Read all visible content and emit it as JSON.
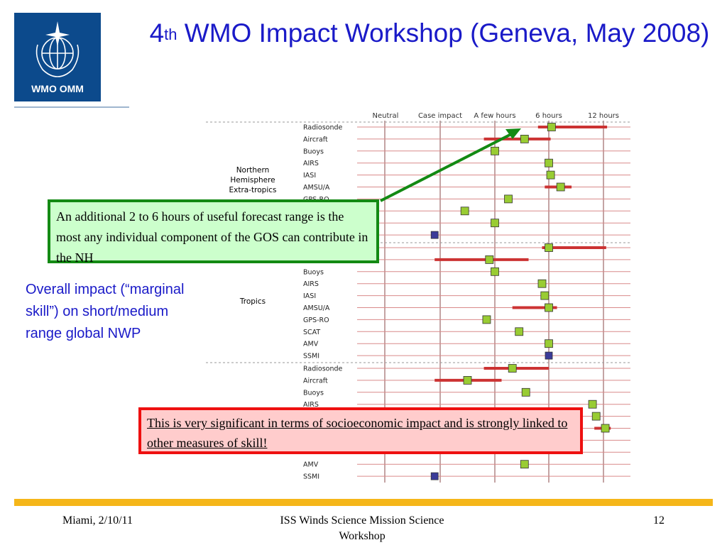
{
  "logo": {
    "text": "WMO OMM",
    "icon": "wmo-emblem-icon"
  },
  "title": {
    "sup": "th",
    "prefix": "4",
    "rest": " WMO Impact Workshop (Geneva, May 2008)"
  },
  "side_text": "Overall impact (“marginal skill”) on short/medium range global NWP",
  "callout_green": "An additional 2 to 6 hours of useful forecast range is the most any individual component of the GOS can contribute in the NH",
  "callout_red": "This is very significant in terms of socioeconomic impact and is strongly linked to other measures of skill!",
  "footer": {
    "left": "Miami, 2/10/11",
    "center": "ISS Winds Science Mission Science Workshop",
    "right": "12"
  },
  "colors": {
    "title": "#1a1ac8",
    "range_bar": "#cc3333",
    "marker_green": "#99cc33",
    "marker_blue": "#3b3b99",
    "callout_green_border": "#138a13",
    "callout_red_border": "#ee1010",
    "footer_rule": "#f5b619"
  },
  "chart_data": {
    "type": "scatter",
    "x_categories": [
      "Neutral",
      "Case impact",
      "A few hours",
      "6 hours",
      "12 hours"
    ],
    "groups": [
      {
        "label": "Northern Hemisphere Extra-tropics",
        "rows": [
          {
            "name": "Radiosonde",
            "value": 6.3,
            "range": [
              5.2,
              12.4
            ],
            "color": "green"
          },
          {
            "name": "Aircraft",
            "value": 4.2,
            "range": [
              1.6,
              6.2
            ],
            "color": "green"
          },
          {
            "name": "Buoys",
            "value": 2.0,
            "range": null,
            "color": "green"
          },
          {
            "name": "AIRS",
            "value": 6.0,
            "range": null,
            "color": "green"
          },
          {
            "name": "IASI",
            "value": 6.2,
            "range": null,
            "color": "green"
          },
          {
            "name": "AMSU/A",
            "value": 7.3,
            "range": [
              5.7,
              8.5
            ],
            "color": "green"
          },
          {
            "name": "GPS-RO",
            "value": 3.0,
            "range": null,
            "color": "green"
          },
          {
            "name": "",
            "value": 0.9,
            "range": null,
            "color": "green"
          },
          {
            "name": "",
            "value": 2.0,
            "range": null,
            "color": "green"
          },
          {
            "name": "",
            "value": -0.1,
            "range": null,
            "color": "blue"
          }
        ]
      },
      {
        "label": "Tropics",
        "rows": [
          {
            "name": "",
            "value": 6.0,
            "range": [
              5.5,
              12.3
            ],
            "color": "green"
          },
          {
            "name": "",
            "value": 1.8,
            "range": [
              -0.1,
              4.5
            ],
            "color": "green"
          },
          {
            "name": "Buoys",
            "value": 2.0,
            "range": null,
            "color": "green"
          },
          {
            "name": "AIRS",
            "value": 5.5,
            "range": null,
            "color": "green"
          },
          {
            "name": "IASI",
            "value": 5.7,
            "range": null,
            "color": "green"
          },
          {
            "name": "AMSU/A",
            "value": 6.0,
            "range": [
              3.3,
              6.9
            ],
            "color": "green"
          },
          {
            "name": "GPS-RO",
            "value": 1.7,
            "range": null,
            "color": "green"
          },
          {
            "name": "SCAT",
            "value": 3.8,
            "range": null,
            "color": "green"
          },
          {
            "name": "AMV",
            "value": 6.0,
            "range": null,
            "color": "green"
          },
          {
            "name": "SSMI",
            "value": 6.0,
            "range": null,
            "color": "blue"
          }
        ]
      },
      {
        "label": "",
        "rows": [
          {
            "name": "Radiosonde",
            "value": 3.3,
            "range": [
              1.6,
              6.0
            ],
            "color": "green"
          },
          {
            "name": "Aircraft",
            "value": 1.0,
            "range": [
              -0.1,
              2.5
            ],
            "color": "green"
          },
          {
            "name": "Buoys",
            "value": 4.3,
            "range": null,
            "color": "green"
          },
          {
            "name": "AIRS",
            "value": 10.8,
            "range": null,
            "color": "green"
          },
          {
            "name": "",
            "value": 11.2,
            "range": null,
            "color": "green"
          },
          {
            "name": "",
            "value": 12.2,
            "range": [
              11.0,
              12.8
            ],
            "color": "green"
          },
          {
            "name": "",
            "value": null,
            "range": null,
            "color": "green"
          },
          {
            "name": "",
            "value": null,
            "range": null,
            "color": "green"
          },
          {
            "name": "AMV",
            "value": 4.2,
            "range": null,
            "color": "green"
          },
          {
            "name": "SSMI",
            "value": -0.1,
            "range": null,
            "color": "blue"
          }
        ]
      }
    ]
  }
}
